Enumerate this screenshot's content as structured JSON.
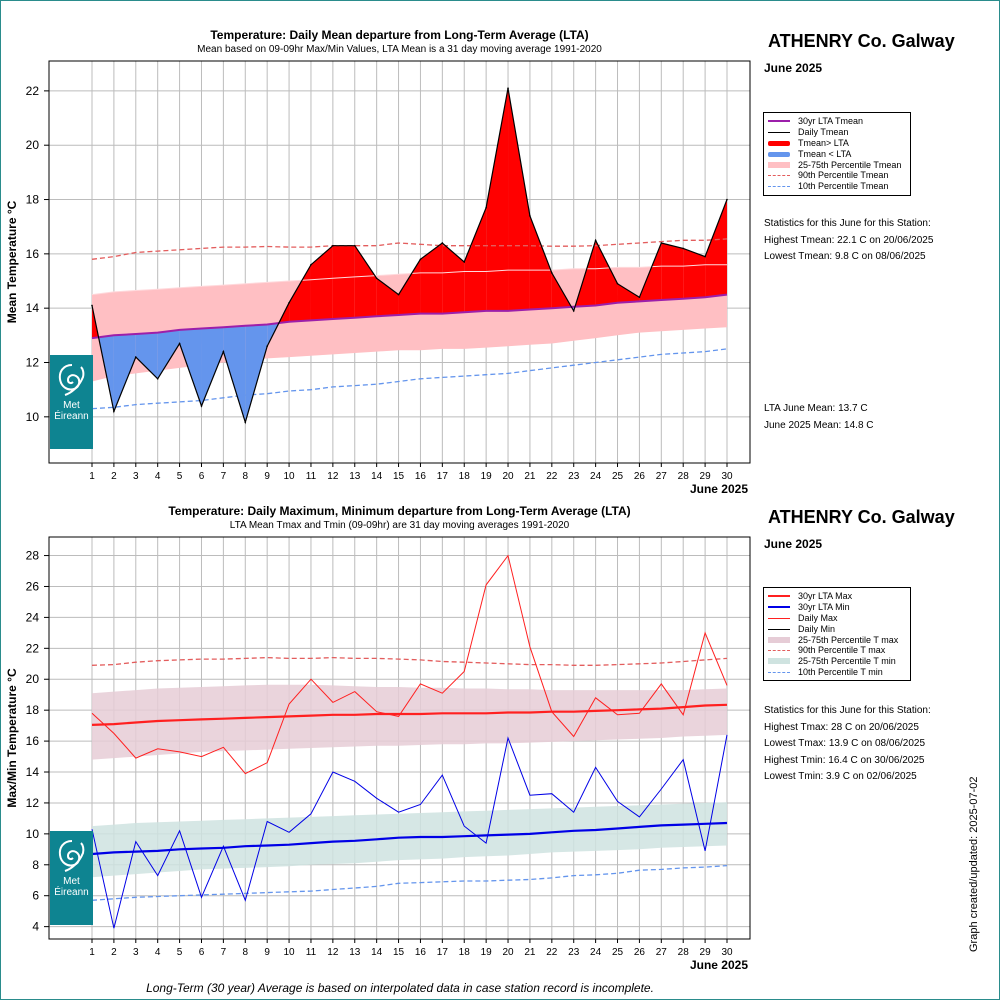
{
  "colors": {
    "lta": "#9c1faa",
    "daily": "#000000",
    "above": "#ff0000",
    "below": "#6495ed",
    "band": "#ffbfc3",
    "p90": "#e35d5d",
    "p10": "#6495ed",
    "max": "#ff2020",
    "min": "#0000e6",
    "band_max": "#e6ccd6",
    "band_min": "#cfe3e0",
    "logo": "#0e8491",
    "grid": "#bcbcbc"
  },
  "top": {
    "station": "ATHENRY Co. Galway",
    "period": "June 2025",
    "legend": [
      {
        "label": "30yr LTA Tmean",
        "style": "lta"
      },
      {
        "label": "Daily Tmean",
        "style": "daily"
      },
      {
        "label": "Tmean> LTA",
        "style": "above"
      },
      {
        "label": "Tmean < LTA",
        "style": "below"
      },
      {
        "label": "25-75th Percentile Tmean",
        "style": "band"
      },
      {
        "label": "90th Percentile Tmean",
        "style": "p90"
      },
      {
        "label": "10th Percentile Tmean",
        "style": "p10"
      }
    ],
    "stats_heading": "Statistics for this June for this Station:",
    "stats": [
      "Highest Tmean: 22.1 C on 20/06/2025",
      "Lowest Tmean: 9.8 C on 08/06/2025"
    ],
    "means": [
      "LTA June Mean: 13.7 C",
      "June 2025 Mean: 14.8 C"
    ]
  },
  "bottom": {
    "station": "ATHENRY Co. Galway",
    "period": "June 2025",
    "legend": [
      {
        "label": "30yr LTA Max",
        "style": "ltamax"
      },
      {
        "label": "30yr LTA Min",
        "style": "ltamin"
      },
      {
        "label": "Daily Max",
        "style": "dmax"
      },
      {
        "label": "Daily Min",
        "style": "daily"
      },
      {
        "label": "25-75th Percentile T max",
        "style": "bandmax"
      },
      {
        "label": "90th Percentile T max",
        "style": "p90"
      },
      {
        "label": "25-75th Percentile T min",
        "style": "bandmin"
      },
      {
        "label": "10th Percentile T min",
        "style": "p10"
      }
    ],
    "stats_heading": "Statistics for this June for this Station:",
    "stats": [
      "Highest Tmax: 28 C on 20/06/2025",
      "Lowest Tmax: 13.9 C on 08/06/2025",
      "Highest Tmin: 16.4 C on 30/06/2025",
      "Lowest Tmin: 3.9 C on 02/06/2025"
    ]
  },
  "logo": {
    "line1": "Met",
    "line2": "Éireann"
  },
  "footnote": "Long-Term (30 year) Average is based on interpolated data in case station record is incomplete.",
  "updated": "Graph created/updated:  2025-07-02",
  "chart_data": [
    {
      "type": "area",
      "title": "Temperature: Daily Mean departure from Long-Term Average (LTA)",
      "subtitle": "Mean based on 09-09hr Max/Min Values, LTA Mean is a 31 day moving average 1991-2020",
      "ylabel": "Mean Temperature °C",
      "xlabel": "June 2025",
      "ylim": [
        8.3,
        23.1
      ],
      "yticks": [
        10,
        12,
        14,
        16,
        18,
        20,
        22
      ],
      "x": [
        1,
        2,
        3,
        4,
        5,
        6,
        7,
        8,
        9,
        10,
        11,
        12,
        13,
        14,
        15,
        16,
        17,
        18,
        19,
        20,
        21,
        22,
        23,
        24,
        25,
        26,
        27,
        28,
        29,
        30
      ],
      "series": [
        {
          "name": "Daily Tmean",
          "values": [
            14.1,
            10.2,
            12.2,
            11.4,
            12.7,
            10.4,
            12.4,
            9.8,
            12.6,
            14.2,
            15.6,
            16.3,
            16.3,
            15.1,
            14.5,
            15.8,
            16.4,
            15.7,
            17.7,
            22.1,
            17.4,
            15.3,
            13.9,
            16.5,
            14.9,
            14.4,
            16.4,
            16.2,
            15.9,
            18.0
          ]
        },
        {
          "name": "30yr LTA Tmean",
          "values": [
            12.9,
            13.0,
            13.05,
            13.1,
            13.2,
            13.25,
            13.3,
            13.35,
            13.4,
            13.5,
            13.55,
            13.6,
            13.65,
            13.7,
            13.75,
            13.8,
            13.8,
            13.85,
            13.9,
            13.9,
            13.95,
            14.0,
            14.05,
            14.1,
            14.2,
            14.25,
            14.3,
            14.35,
            14.4,
            14.5
          ]
        },
        {
          "name": "25th Percentile Tmean",
          "values": [
            11.3,
            11.5,
            11.6,
            11.7,
            11.8,
            11.9,
            12.0,
            12.1,
            12.15,
            12.2,
            12.25,
            12.3,
            12.35,
            12.4,
            12.45,
            12.45,
            12.5,
            12.5,
            12.55,
            12.6,
            12.65,
            12.7,
            12.8,
            12.9,
            13.0,
            13.1,
            13.15,
            13.2,
            13.25,
            13.3
          ]
        },
        {
          "name": "75th Percentile Tmean",
          "values": [
            14.5,
            14.6,
            14.65,
            14.7,
            14.75,
            14.8,
            14.85,
            14.9,
            14.95,
            15.0,
            15.05,
            15.1,
            15.15,
            15.2,
            15.25,
            15.3,
            15.3,
            15.35,
            15.35,
            15.4,
            15.4,
            15.4,
            15.45,
            15.45,
            15.5,
            15.5,
            15.55,
            15.55,
            15.6,
            15.6
          ]
        },
        {
          "name": "90th Percentile Tmean",
          "values": [
            15.8,
            15.9,
            16.05,
            16.1,
            16.15,
            16.2,
            16.25,
            16.25,
            16.27,
            16.25,
            16.25,
            16.3,
            16.3,
            16.3,
            16.4,
            16.35,
            16.3,
            16.3,
            16.3,
            16.3,
            16.3,
            16.28,
            16.28,
            16.3,
            16.35,
            16.4,
            16.45,
            16.5,
            16.5,
            16.55
          ]
        },
        {
          "name": "10th Percentile Tmean",
          "values": [
            10.3,
            10.35,
            10.45,
            10.5,
            10.55,
            10.6,
            10.7,
            10.8,
            10.85,
            10.95,
            11.0,
            11.1,
            11.15,
            11.2,
            11.3,
            11.4,
            11.45,
            11.5,
            11.55,
            11.6,
            11.7,
            11.8,
            11.9,
            12.0,
            12.1,
            12.2,
            12.3,
            12.35,
            12.4,
            12.5
          ]
        }
      ]
    },
    {
      "type": "line",
      "title": "Temperature: Daily Maximum, Minimum departure from Long-Term Average (LTA)",
      "subtitle": "LTA Mean Tmax and Tmin (09-09hr) are 31 day moving averages 1991-2020",
      "ylabel": "Max/Min Temperature °C",
      "xlabel": "June 2025",
      "ylim": [
        3.2,
        29.2
      ],
      "yticks": [
        4,
        6,
        8,
        10,
        12,
        14,
        16,
        18,
        20,
        22,
        24,
        26,
        28
      ],
      "x": [
        1,
        2,
        3,
        4,
        5,
        6,
        7,
        8,
        9,
        10,
        11,
        12,
        13,
        14,
        15,
        16,
        17,
        18,
        19,
        20,
        21,
        22,
        23,
        24,
        25,
        26,
        27,
        28,
        29,
        30
      ],
      "series": [
        {
          "name": "Daily Max",
          "values": [
            17.8,
            16.5,
            14.9,
            15.5,
            15.3,
            15.0,
            15.6,
            13.9,
            14.6,
            18.4,
            20.0,
            18.5,
            19.2,
            17.9,
            17.6,
            19.7,
            19.1,
            20.5,
            26.1,
            28.0,
            22.1,
            17.9,
            16.3,
            18.8,
            17.7,
            17.8,
            19.7,
            17.7,
            23.0,
            19.6
          ]
        },
        {
          "name": "Daily Min",
          "values": [
            10.3,
            3.9,
            9.5,
            7.3,
            10.2,
            5.9,
            9.2,
            5.7,
            10.8,
            10.1,
            11.3,
            14.0,
            13.4,
            12.3,
            11.4,
            11.9,
            13.8,
            10.5,
            9.4,
            16.2,
            12.5,
            12.6,
            11.4,
            14.3,
            12.1,
            11.1,
            12.9,
            14.8,
            8.9,
            16.4
          ]
        },
        {
          "name": "30yr LTA Max",
          "values": [
            17.05,
            17.1,
            17.2,
            17.3,
            17.35,
            17.4,
            17.45,
            17.5,
            17.55,
            17.6,
            17.65,
            17.7,
            17.7,
            17.75,
            17.75,
            17.75,
            17.8,
            17.8,
            17.8,
            17.85,
            17.85,
            17.9,
            17.9,
            17.95,
            18.0,
            18.05,
            18.1,
            18.2,
            18.3,
            18.35
          ]
        },
        {
          "name": "30yr LTA Min",
          "values": [
            8.7,
            8.8,
            8.85,
            8.9,
            9.0,
            9.05,
            9.1,
            9.2,
            9.25,
            9.3,
            9.4,
            9.5,
            9.55,
            9.65,
            9.75,
            9.8,
            9.8,
            9.85,
            9.9,
            9.95,
            10.0,
            10.1,
            10.2,
            10.25,
            10.35,
            10.45,
            10.55,
            10.6,
            10.65,
            10.7
          ]
        },
        {
          "name": "25th Percentile T max",
          "values": [
            14.8,
            14.9,
            15.0,
            15.1,
            15.2,
            15.3,
            15.35,
            15.4,
            15.45,
            15.5,
            15.55,
            15.6,
            15.65,
            15.7,
            15.7,
            15.75,
            15.8,
            15.8,
            15.85,
            15.85,
            15.9,
            15.95,
            16.0,
            16.05,
            16.1,
            16.15,
            16.2,
            16.3,
            16.35,
            16.4
          ]
        },
        {
          "name": "75th Percentile T max",
          "values": [
            19.1,
            19.2,
            19.3,
            19.4,
            19.45,
            19.5,
            19.55,
            19.6,
            19.65,
            19.65,
            19.65,
            19.6,
            19.55,
            19.5,
            19.5,
            19.45,
            19.45,
            19.4,
            19.4,
            19.35,
            19.35,
            19.3,
            19.3,
            19.3,
            19.3,
            19.3,
            19.3,
            19.3,
            19.35,
            19.4
          ]
        },
        {
          "name": "90th Percentile T max",
          "values": [
            20.9,
            20.95,
            21.1,
            21.2,
            21.25,
            21.3,
            21.3,
            21.35,
            21.4,
            21.35,
            21.35,
            21.4,
            21.35,
            21.35,
            21.3,
            21.25,
            21.15,
            21.1,
            21.05,
            21.0,
            20.95,
            20.95,
            20.9,
            20.9,
            20.95,
            21.0,
            21.05,
            21.15,
            21.25,
            21.35
          ]
        },
        {
          "name": "25th Percentile T min",
          "values": [
            7.2,
            7.3,
            7.4,
            7.5,
            7.6,
            7.7,
            7.75,
            7.8,
            7.85,
            7.9,
            8.0,
            8.05,
            8.1,
            8.2,
            8.3,
            8.35,
            8.4,
            8.5,
            8.55,
            8.6,
            8.7,
            8.8,
            8.85,
            8.9,
            8.95,
            9.0,
            9.1,
            9.15,
            9.2,
            9.25
          ]
        },
        {
          "name": "75th Percentile T min",
          "values": [
            10.5,
            10.6,
            10.7,
            10.75,
            10.8,
            10.85,
            10.9,
            10.95,
            11.0,
            11.05,
            11.1,
            11.15,
            11.2,
            11.25,
            11.3,
            11.35,
            11.4,
            11.45,
            11.5,
            11.55,
            11.6,
            11.65,
            11.7,
            11.75,
            11.8,
            11.85,
            11.9,
            11.95,
            12.0,
            12.05
          ]
        },
        {
          "name": "10th Percentile T min",
          "values": [
            5.7,
            5.8,
            5.9,
            5.95,
            6.0,
            6.05,
            6.1,
            6.15,
            6.2,
            6.25,
            6.3,
            6.4,
            6.5,
            6.6,
            6.8,
            6.85,
            6.9,
            6.95,
            6.95,
            7.0,
            7.05,
            7.15,
            7.3,
            7.35,
            7.45,
            7.65,
            7.7,
            7.8,
            7.85,
            7.95
          ]
        }
      ]
    }
  ]
}
